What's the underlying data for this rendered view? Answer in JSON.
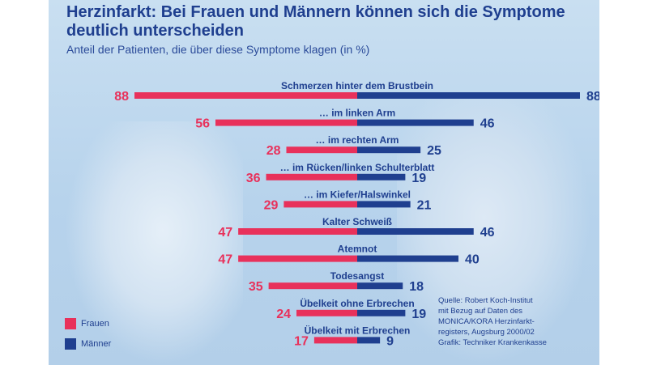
{
  "title": "Herzinfarkt: Bei Frauen und Männern können sich die Symptome deutlich unterscheiden",
  "subtitle": "Anteil der Patienten, die über diese Symptome klagen (in %)",
  "colors": {
    "women": "#e8315b",
    "men": "#1f3f8f",
    "value_women": "#e8315b",
    "value_men": "#1f3f8f"
  },
  "legend": {
    "women": "Frauen",
    "men": "Männer"
  },
  "source": [
    "Quelle: Robert Koch-Institut",
    "mit Bezug auf Daten des",
    "MONICA/KORA Herzinfarkt-",
    "registers, Augsburg 2000/02",
    "Grafik: Techniker Krankenkasse"
  ],
  "chart_data": {
    "type": "bar",
    "orientation": "horizontal-diverging",
    "categories": [
      "Schmerzen hinter dem Brustbein",
      "… im linken Arm",
      "… im rechten Arm",
      "… im Rücken/linken Schulterblatt",
      "… im Kiefer/Halswinkel",
      "Kalter Schweiß",
      "Atemnot",
      "Todesangst",
      "Übelkeit ohne Erbrechen",
      "Übelkeit mit Erbrechen"
    ],
    "series": [
      {
        "name": "Frauen",
        "values": [
          88,
          56,
          28,
          36,
          29,
          47,
          47,
          35,
          24,
          17
        ]
      },
      {
        "name": "Männer",
        "values": [
          88,
          46,
          25,
          19,
          21,
          46,
          40,
          18,
          19,
          9
        ]
      }
    ],
    "xlim": [
      0,
      88
    ],
    "legend_position": "bottom-left"
  }
}
